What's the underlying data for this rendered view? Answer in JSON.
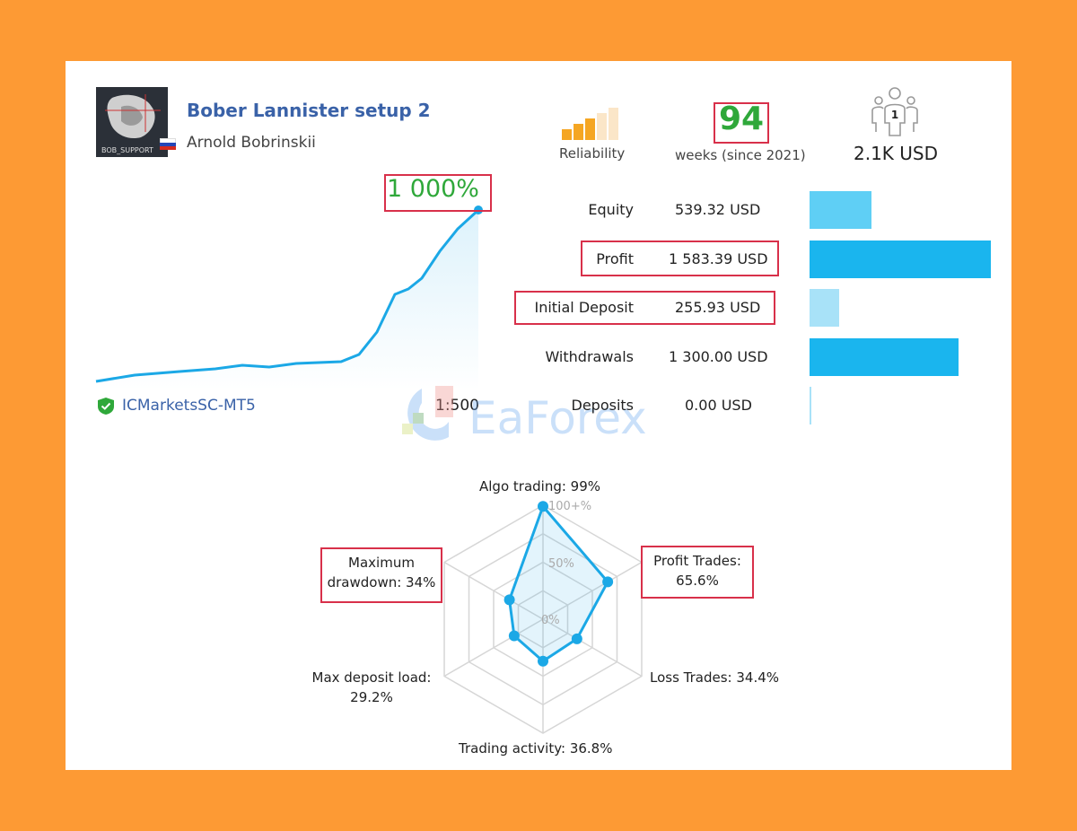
{
  "signal": {
    "title": "Bober Lannister setup 2",
    "author": "Arnold Bobrinskii",
    "avatar_text": "BOB_SUPPORT",
    "country_flag": "russia-flag-icon",
    "growth": "1 000%",
    "broker": "ICMarketsSC-MT5",
    "leverage": "1:500"
  },
  "header_stats": {
    "reliability_label": "Reliability",
    "reliability_level": 3,
    "reliability_max": 5,
    "weeks": "94",
    "weeks_label": "weeks (since 2021)",
    "subscribers_count": "1",
    "subscribers_value": "2.1K USD"
  },
  "stats": [
    {
      "label": "Equity",
      "value": "539.32 USD",
      "amount": 539.32,
      "color": "#5fcff5"
    },
    {
      "label": "Profit",
      "value": "1 583.39 USD",
      "amount": 1583.39,
      "color": "#1ab5ee"
    },
    {
      "label": "Initial Deposit",
      "value": "255.93 USD",
      "amount": 255.93,
      "color": "#a8e2f8"
    },
    {
      "label": "Withdrawals",
      "value": "1 300.00 USD",
      "amount": 1300.0,
      "color": "#1ab5ee"
    },
    {
      "label": "Deposits",
      "value": "0.00 USD",
      "amount": 0.0,
      "color": "#a8e2f8"
    }
  ],
  "chart_data": {
    "type": "radar",
    "axes": [
      {
        "label": "Algo trading: 99%",
        "value": 99
      },
      {
        "label": "Profit Trades: 65.6%",
        "value": 65.6
      },
      {
        "label": "Loss Trades: 34.4%",
        "value": 34.4
      },
      {
        "label": "Trading activity: 36.8%",
        "value": 36.8
      },
      {
        "label": "Max deposit load: 29.2%",
        "value": 29.2
      },
      {
        "label": "Maximum drawdown: 34%",
        "value": 34
      }
    ],
    "ring_labels": [
      "0%",
      "50%",
      "100+%"
    ],
    "range": [
      0,
      100
    ],
    "color": "#1ba8e6"
  },
  "radar_labels": {
    "algo": "Algo trading: 99%",
    "profit_1": "Profit Trades:",
    "profit_2": "65.6%",
    "loss": "Loss Trades: 34.4%",
    "activity": "Trading activity: 36.8%",
    "deposit_1": "Max deposit load:",
    "deposit_2": "29.2%",
    "drawdown_1": "Maximum",
    "drawdown_2": "drawdown: 34%"
  },
  "watermark": "EaForex",
  "colors": {
    "background": "#fd9a34",
    "highlight": "#d8304a",
    "growth": "#2fa83a",
    "title": "#3a62a8",
    "line": "#1ba8e6"
  }
}
